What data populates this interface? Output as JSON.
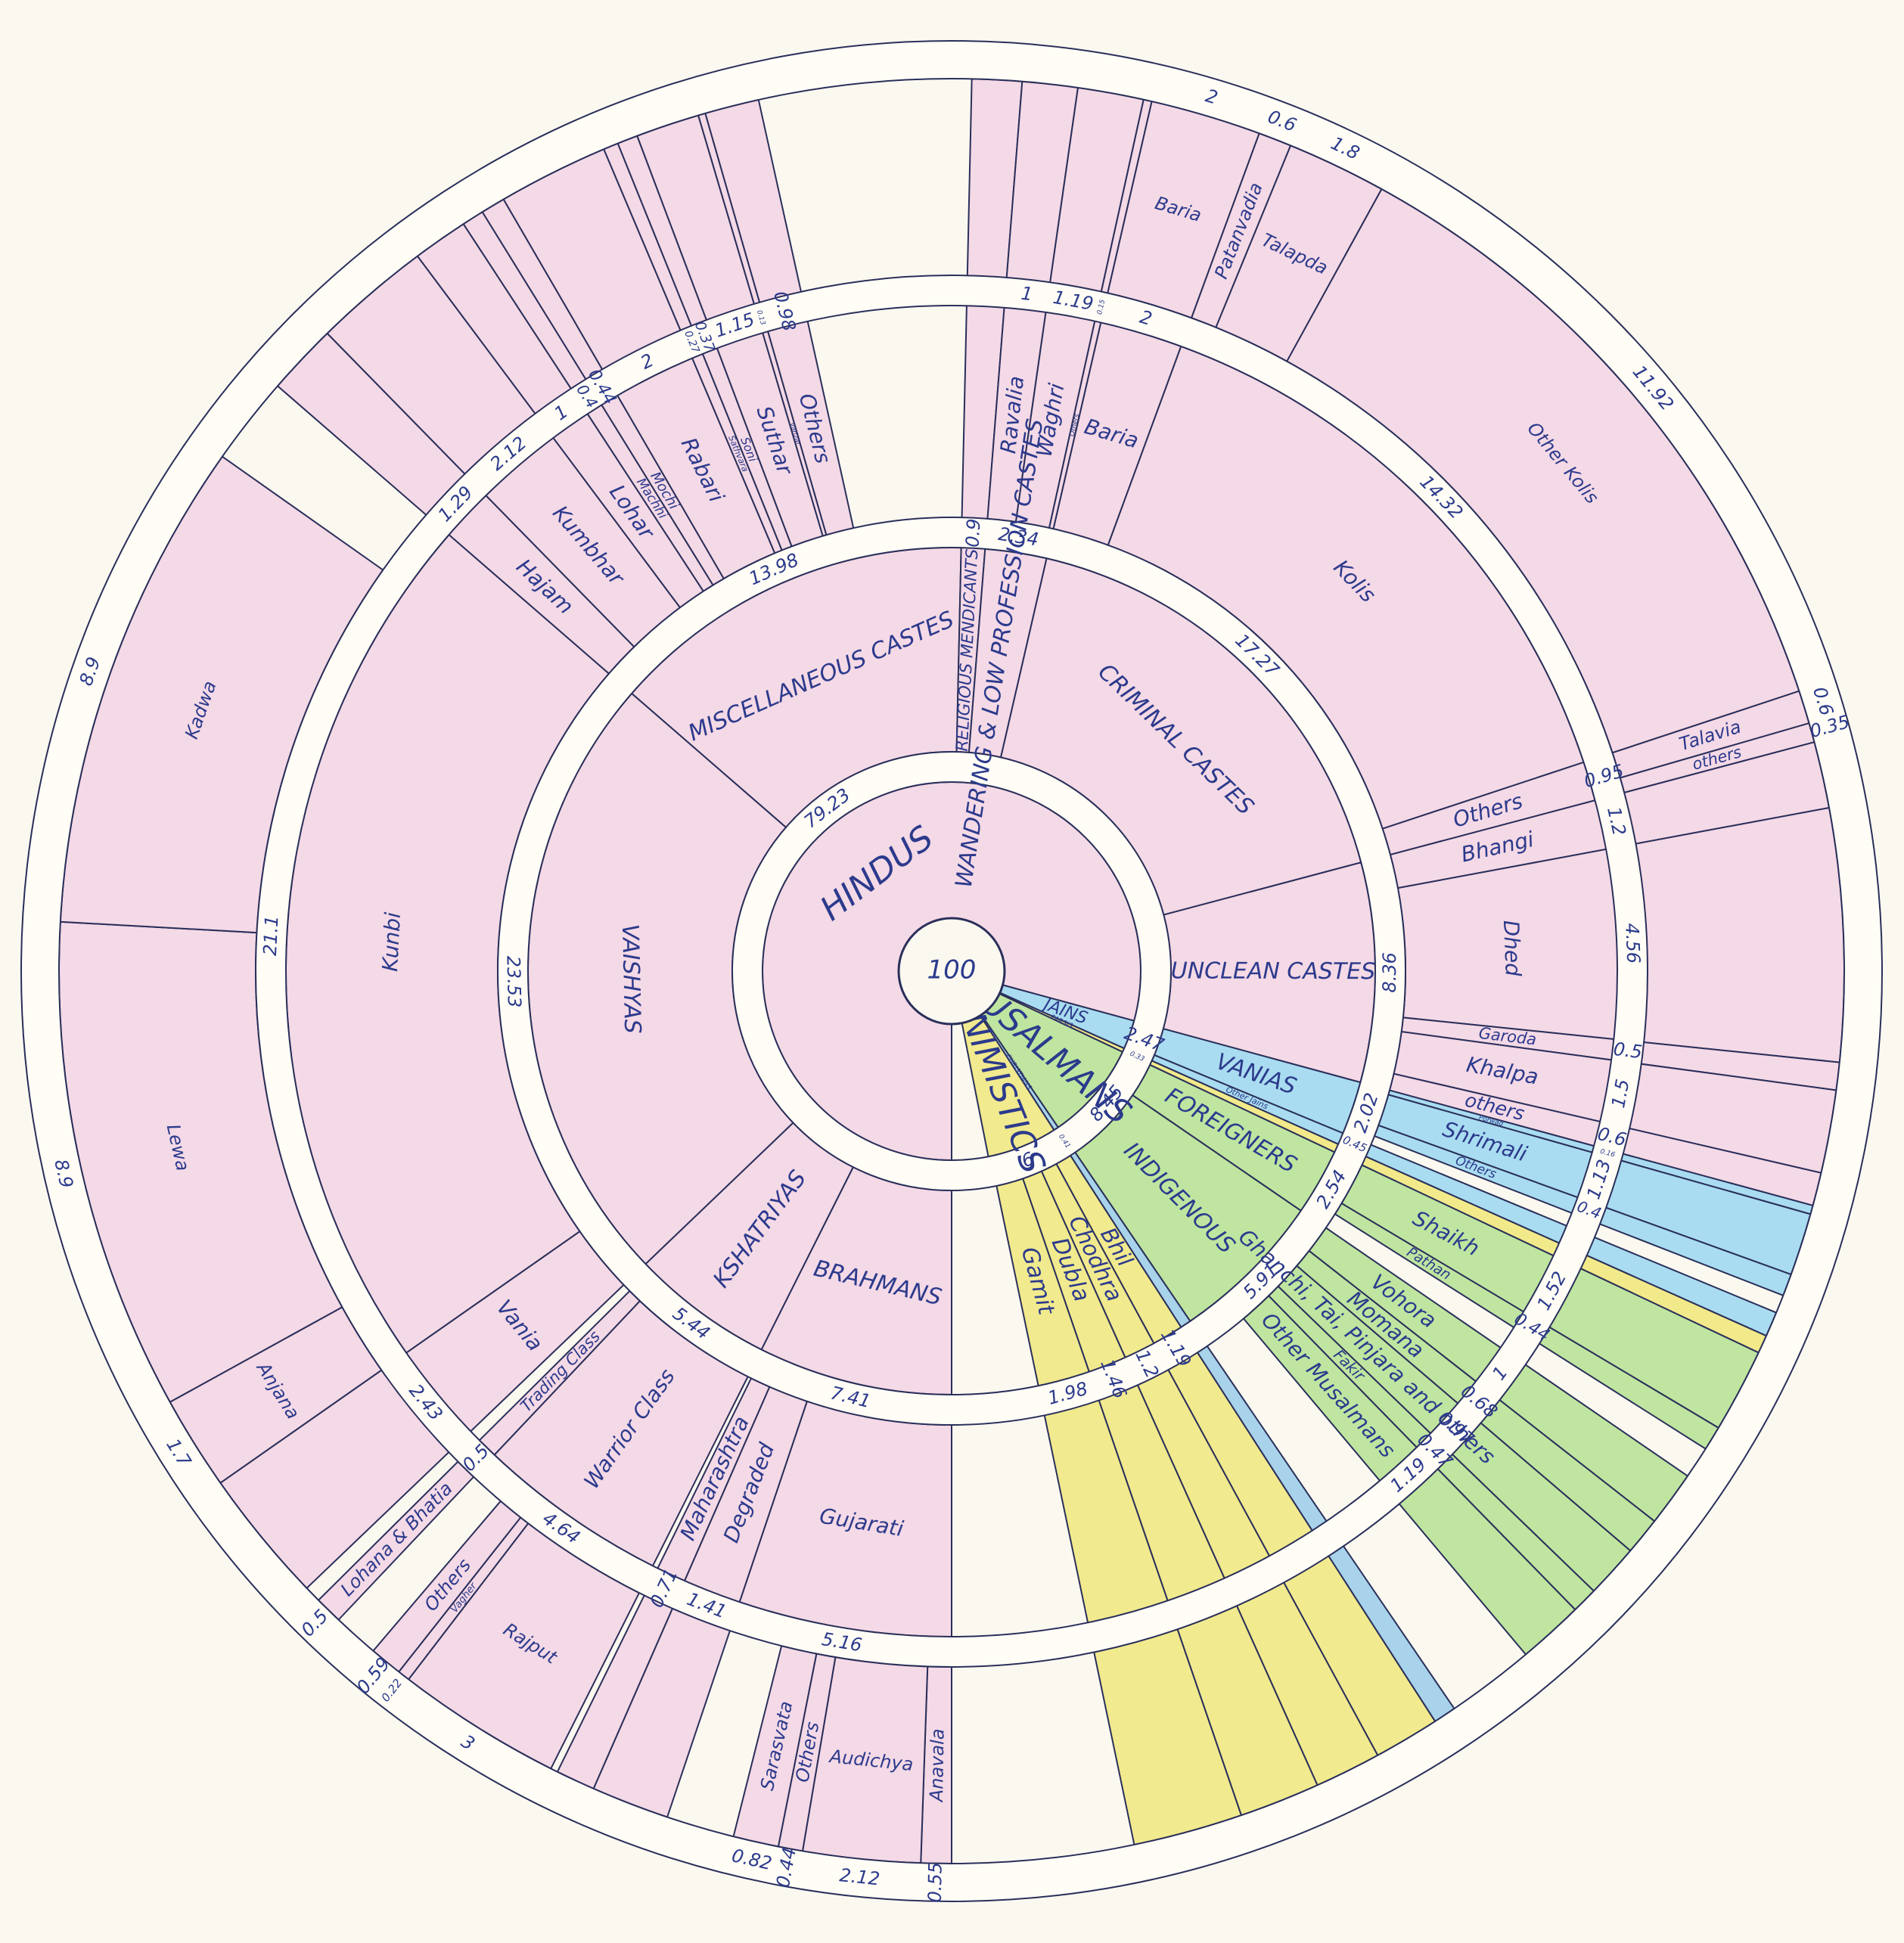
{
  "chart_data": {
    "type": "sunburst",
    "total": 100,
    "root": [
      {
        "name": "HINDUS",
        "value": 79.23,
        "color": "#f4d9e6",
        "children": [
          {
            "name": "BRAHMANS",
            "value": 7.41,
            "children": [
              {
                "name": "Gujarati",
                "value": 5.16,
                "children": [
                  {
                    "name": "Anavala",
                    "value": 0.55
                  },
                  {
                    "name": "Audichya",
                    "value": 2.12
                  },
                  {
                    "name": "Others",
                    "value": 0.44
                  },
                  {
                    "name": "Sarasvata",
                    "value": 0.82
                  }
                ]
              },
              {
                "name": "Degraded",
                "value": 1.41
              },
              {
                "name": "Maharashtra",
                "value": 0.71
              }
            ]
          },
          {
            "name": "KSHATRIYAS",
            "value": 5.44,
            "children": [
              {
                "name": "Warrior Class",
                "value": 4.64,
                "children": [
                  {
                    "name": "Rajput",
                    "value": 3
                  },
                  {
                    "name": "Vagher",
                    "value": 0.22
                  },
                  {
                    "name": "Others",
                    "value": 0.59
                  }
                ]
              },
              {
                "name": "Trading Class",
                "value": 0.5,
                "children": [
                  {
                    "name": "Lohana & Bhatia",
                    "value": 0.5
                  }
                ]
              }
            ]
          },
          {
            "name": "VAISHYAS",
            "value": 23.53,
            "children": [
              {
                "name": "Vania",
                "value": 2.43
              },
              {
                "name": "Kunbi",
                "value": 21.1,
                "children": [
                  {
                    "name": "Anjana",
                    "value": 1.7
                  },
                  {
                    "name": "Lewa",
                    "value": 8.9
                  },
                  {
                    "name": "Kadwa",
                    "value": 8.9
                  }
                ]
              }
            ]
          },
          {
            "name": "MISCELLANEOUS CASTES",
            "value": 13.98,
            "children": [
              {
                "name": "Hajam",
                "value": 1.29
              },
              {
                "name": "Kumbhar",
                "value": 2.12
              },
              {
                "name": "Lohar",
                "value": 1
              },
              {
                "name": "Machhi",
                "value": 0.4
              },
              {
                "name": "Mochi",
                "value": 0.44
              },
              {
                "name": "Rabari",
                "value": 2
              },
              {
                "name": "Sathvara",
                "value": 0.27
              },
              {
                "name": "Soni",
                "value": 0.37
              },
              {
                "name": "Suthar",
                "value": 1.15
              },
              {
                "name": "Vanzar",
                "value": 0.13
              },
              {
                "name": "Others",
                "value": 0.98
              }
            ]
          },
          {
            "name": "RELIGIOUS MENDICANTS",
            "value": 0.9
          },
          {
            "name": "WANDERING & LOW PROFESSION CASTES",
            "value": 2.34,
            "children": [
              {
                "name": "Ravalia",
                "value": 1
              },
              {
                "name": "Waghri",
                "value": 1.19
              },
              {
                "name": "Others",
                "value": 0.15
              }
            ]
          },
          {
            "name": "CRIMINAL CASTES",
            "value": 17.27,
            "children": [
              {
                "name": "Baria",
                "value": 2,
                "children": [
                  {
                    "name": "Baria",
                    "value": 2
                  }
                ]
              },
              {
                "name": "Kolis",
                "value": 14.32,
                "children": [
                  {
                    "name": "Patanvadia",
                    "value": 0.6
                  },
                  {
                    "name": "Talapda",
                    "value": 1.8
                  },
                  {
                    "name": "Other Kolis",
                    "value": 11.92
                  }
                ]
              },
              {
                "name": "Others",
                "value": 0.95,
                "children": [
                  {
                    "name": "Talavia",
                    "value": 0.6
                  },
                  {
                    "name": "others",
                    "value": 0.35
                  }
                ]
              }
            ]
          },
          {
            "name": "UNCLEAN CASTES",
            "value": 8.36,
            "children": [
              {
                "name": "Bhangi",
                "value": 1.2
              },
              {
                "name": "Dhed",
                "value": 4.56
              },
              {
                "name": "Garoda",
                "value": 0.5
              },
              {
                "name": "Khalpa",
                "value": 1.5
              },
              {
                "name": "others",
                "value": 0.6
              }
            ]
          }
        ]
      },
      {
        "name": "JAINS",
        "value": 2.47,
        "color": "#a9dcf0",
        "children": [
          {
            "name": "VANIAS",
            "value": 2.02,
            "children": [
              {
                "name": "Porwad",
                "value": 0.16
              },
              {
                "name": "Shrimali",
                "value": 1.13
              },
              {
                "name": "Others",
                "value": 0.4
              }
            ]
          },
          {
            "name": "Other Jains",
            "value": 0.45
          }
        ]
      },
      {
        "name": "PARSIS",
        "value": 0.33,
        "color": "#f2ea8a"
      },
      {
        "name": "MUSALMANS",
        "value": 8.45,
        "color": "#bfe5a0",
        "children": [
          {
            "name": "FOREIGNERS",
            "value": 2.54,
            "children": [
              {
                "name": "Shaikh",
                "value": 1.52
              },
              {
                "name": "Pathan",
                "value": 0.44
              }
            ]
          },
          {
            "name": "INDIGENOUS",
            "value": 5.91,
            "children": [
              {
                "name": "Vohora",
                "value": 1
              },
              {
                "name": "Momana",
                "value": 0.68
              },
              {
                "name": "Ghanchi, Tai, Pinjara and others",
                "value": 0.97
              },
              {
                "name": "Fakir",
                "value": 0.47
              },
              {
                "name": "Other Musalmans",
                "value": 1.19
              }
            ]
          }
        ]
      },
      {
        "name": "CHRISTIANS",
        "value": 0.41,
        "color": "#a8d3ea"
      },
      {
        "name": "ANIMISTICS",
        "value": 6,
        "color": "#f1ea8e",
        "children": [
          {
            "name": "Bhil",
            "value": 1.19
          },
          {
            "name": "Chodhra",
            "value": 1.2
          },
          {
            "name": "Dubla",
            "value": 1.46
          },
          {
            "name": "Gamit",
            "value": 1.98
          }
        ]
      }
    ]
  }
}
